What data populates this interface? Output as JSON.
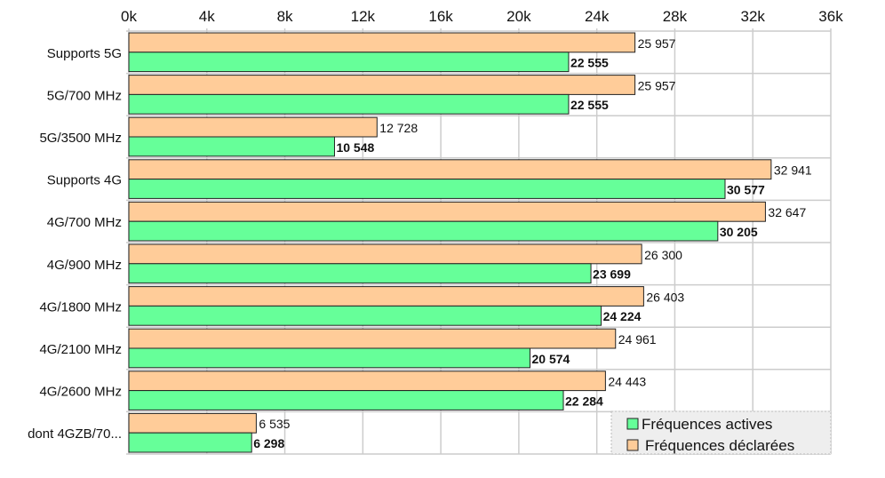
{
  "chart_data": {
    "type": "bar",
    "orientation": "horizontal",
    "title": "",
    "xlabel": "",
    "ylabel": "",
    "xlim": [
      0,
      36000
    ],
    "x_ticks": [
      "0k",
      "4k",
      "8k",
      "12k",
      "16k",
      "20k",
      "24k",
      "28k",
      "32k",
      "36k"
    ],
    "x_tick_values": [
      0,
      4000,
      8000,
      12000,
      16000,
      20000,
      24000,
      28000,
      32000,
      36000
    ],
    "grid": true,
    "legend_position": "bottom-right",
    "categories": [
      "Supports 5G",
      "5G/700 MHz",
      "5G/3500 MHz",
      "Supports 4G",
      "4G/700 MHz",
      "4G/900 MHz",
      "4G/1800 MHz",
      "4G/2100 MHz",
      "4G/2600 MHz",
      "dont 4GZB/70..."
    ],
    "series": [
      {
        "name": "Fréquences déclarées",
        "color": "#ffcc99",
        "values": [
          25957,
          25957,
          12728,
          32941,
          32647,
          26300,
          26403,
          24961,
          24443,
          6535
        ],
        "labels": [
          "25 957",
          "25 957",
          "12 728",
          "32 941",
          "32 647",
          "26 300",
          "26 403",
          "24 961",
          "24 443",
          "6 535"
        ]
      },
      {
        "name": "Fréquences actives",
        "color": "#66ff99",
        "values": [
          22555,
          22555,
          10548,
          30577,
          30205,
          23699,
          24224,
          20574,
          22284,
          6298
        ],
        "labels": [
          "22 555",
          "22 555",
          "10 548",
          "30 577",
          "30 205",
          "23 699",
          "24 224",
          "20 574",
          "22 284",
          "6 298"
        ]
      }
    ],
    "legend": [
      "Fréquences actives",
      "Fréquences déclarées"
    ]
  }
}
